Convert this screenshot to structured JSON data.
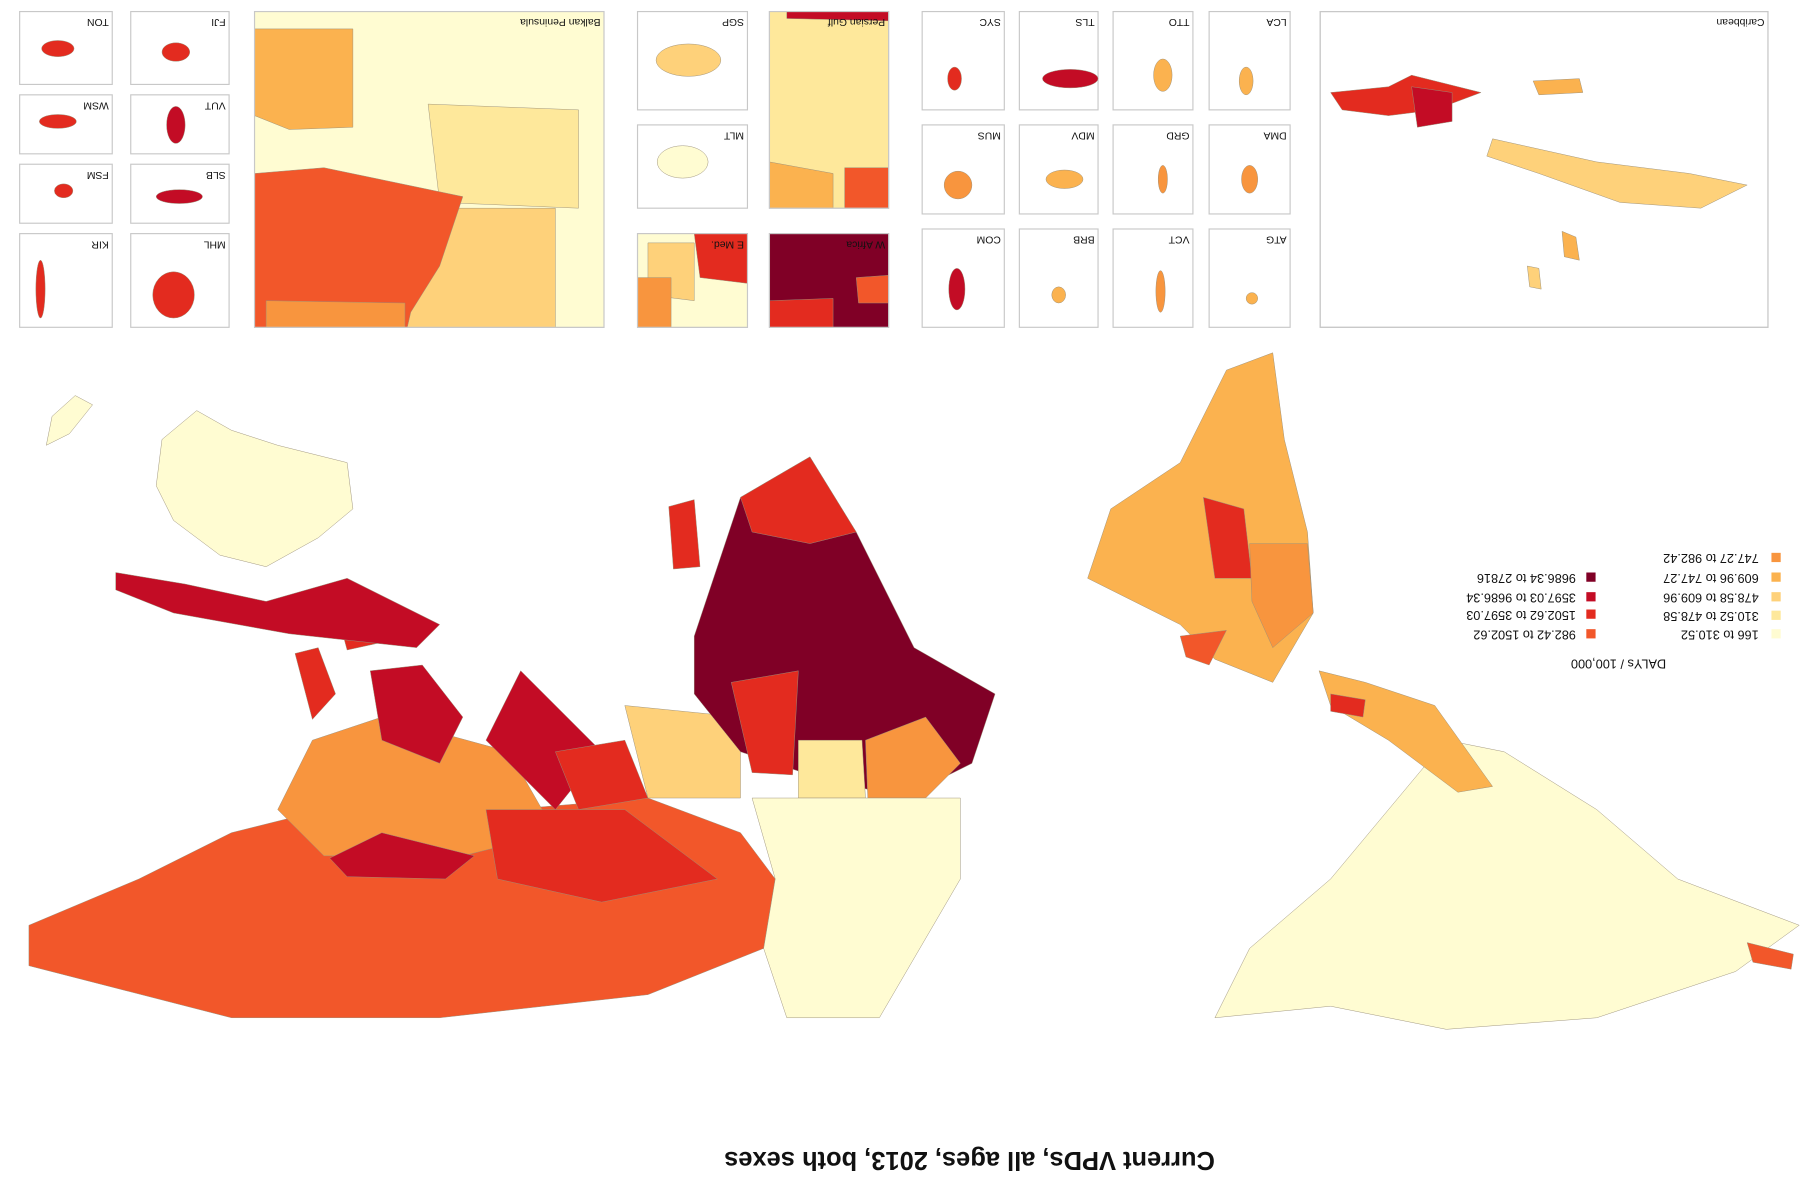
{
  "title": "Current VPDs, all ages, 2013, both sexes",
  "legend": {
    "title": "DALYs / 100,000",
    "items": [
      {
        "label": "166 to 310.52",
        "color": "#fffcd2"
      },
      {
        "label": "310.52 to 478.58",
        "color": "#fee89b"
      },
      {
        "label": "478.58 to 609.96",
        "color": "#fed17a"
      },
      {
        "label": "609.96 to 747.27",
        "color": "#fbb24f"
      },
      {
        "label": "747.27 to 982.42",
        "color": "#f8953e"
      },
      {
        "label": "982.42 to 1502.62",
        "color": "#f2572a"
      },
      {
        "label": "1502.62 to 3597.03",
        "color": "#e32b1f"
      },
      {
        "label": "3597.03 to 9686.34",
        "color": "#c30c25"
      },
      {
        "label": "9686.34 to 27816",
        "color": "#800026"
      }
    ]
  },
  "insets": [
    "TON",
    "FJI",
    "WSM",
    "VUT",
    "FSM",
    "SLB",
    "KIR",
    "MHL",
    "Balkan Peninsula",
    "SGP",
    "Persian Gulf",
    "MLT",
    "E Med.",
    "W Africa",
    "SYC",
    "TLS",
    "TTO",
    "LCA",
    "MUS",
    "MDV",
    "GRD",
    "DMA",
    "COM",
    "BRB",
    "VCT",
    "ATG",
    "Caribbean"
  ]
}
